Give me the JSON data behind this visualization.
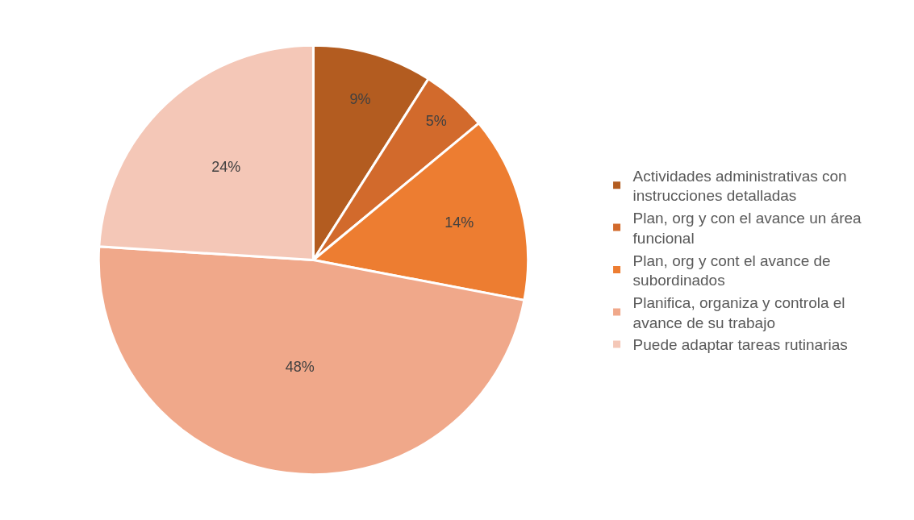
{
  "chart_data": {
    "type": "pie",
    "categories": [
      "Actividades administrativas con instrucciones detalladas",
      "Plan, org y con el avance un área funcional",
      "Plan, org y cont el avance de subordinados",
      "Planifica, organiza y controla el avance de su trabajo",
      "Puede adaptar tareas rutinarias"
    ],
    "values": [
      9,
      5,
      14,
      48,
      24
    ],
    "value_labels": [
      "9%",
      "5%",
      "14%",
      "48%",
      "24%"
    ],
    "colors": [
      "#b35c20",
      "#d26a2c",
      "#ed7d31",
      "#f0a88a",
      "#f4c7b7"
    ],
    "legend": "right"
  }
}
